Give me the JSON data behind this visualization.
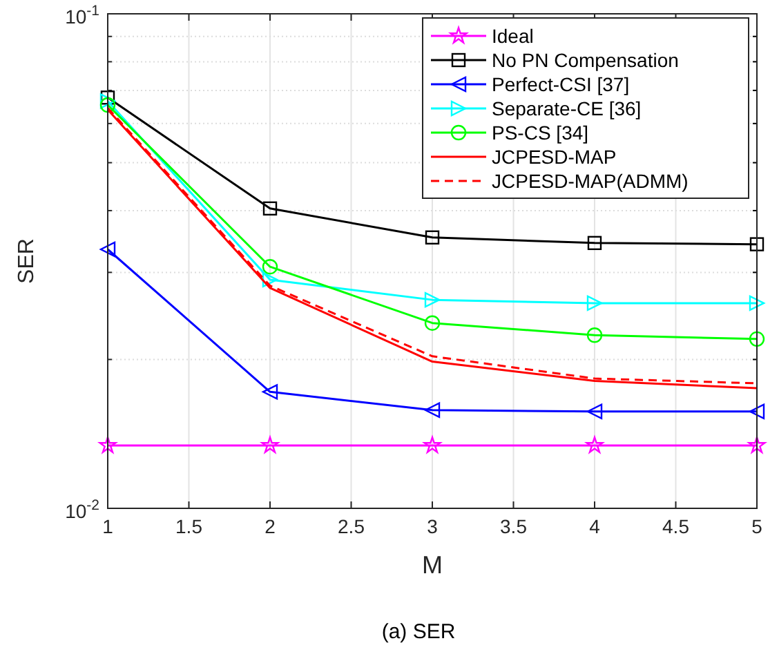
{
  "chart_data": {
    "type": "line",
    "xlabel": "M",
    "ylabel": "SER",
    "annotations": [
      "(a)  SER"
    ],
    "x": [
      1,
      2,
      3,
      4,
      5
    ],
    "xlim": [
      1,
      5
    ],
    "xticks": [
      1,
      1.5,
      2,
      2.5,
      3,
      3.5,
      4,
      4.5,
      5
    ],
    "ylim": [
      0.01,
      0.1
    ],
    "log": true,
    "yticks": [
      {
        "value": 0.01,
        "label": "10$^{-2}$"
      },
      {
        "value": 0.02,
        "label": null
      },
      {
        "value": 0.03,
        "label": null
      },
      {
        "value": 0.04,
        "label": null
      },
      {
        "value": 0.05,
        "label": null
      },
      {
        "value": 0.06,
        "label": null
      },
      {
        "value": 0.07,
        "label": null
      },
      {
        "value": 0.08,
        "label": null
      },
      {
        "value": 0.09,
        "label": null
      },
      {
        "value": 0.1,
        "label": "10$^{-1}$"
      }
    ],
    "grid": true,
    "legend": "top right",
    "series": [
      {
        "name": "Ideal",
        "color": "#ff00ff",
        "marker": "star",
        "values": [
          0.0134,
          0.0134,
          0.0134,
          0.0134,
          0.0134
        ]
      },
      {
        "name": "No PN Compensation",
        "color": "#000000",
        "marker": "square",
        "values": [
          0.0677,
          0.0404,
          0.0353,
          0.0344,
          0.0342
        ]
      },
      {
        "name": "Perfect-CSI [37]",
        "color": "#0000ff",
        "marker": "triangle-left",
        "values": [
          0.0334,
          0.0172,
          0.0158,
          0.0157,
          0.0157
        ]
      },
      {
        "name": "Separate-CE [36]",
        "color": "#00ffff",
        "marker": "triangle-right",
        "values": [
          0.0666,
          0.029,
          0.0264,
          0.026,
          0.026
        ]
      },
      {
        "name": "PS-CS [34]",
        "color": "#00ff00",
        "marker": "circle",
        "values": [
          0.0654,
          0.0308,
          0.0237,
          0.0224,
          0.022
        ]
      },
      {
        "name": "JCPESD-MAP",
        "color": "#ff0000",
        "marker": "none",
        "values": [
          0.064,
          0.0279,
          0.0198,
          0.0181,
          0.0175
        ]
      },
      {
        "name": "JCPESD-MAP(ADMM)",
        "color": "#ff0000",
        "marker": "none",
        "line_style": "dashed",
        "values": [
          0.0645,
          0.0282,
          0.0203,
          0.0183,
          0.0179
        ]
      }
    ]
  }
}
